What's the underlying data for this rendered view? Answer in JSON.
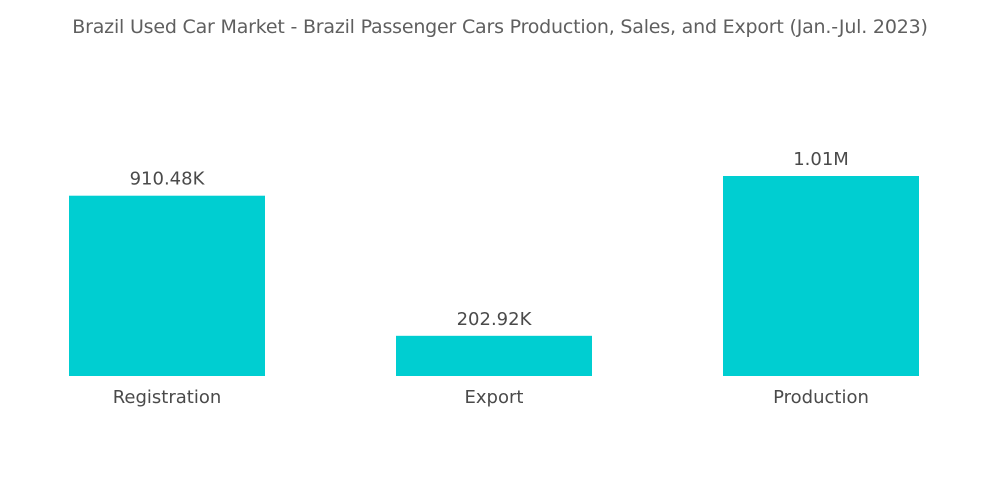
{
  "chart_data": {
    "type": "bar",
    "title": "Brazil Used Car Market - Brazil Passenger Cars Production, Sales, and Export (Jan.-Jul. 2023)",
    "categories": [
      "Registration",
      "Export",
      "Production"
    ],
    "values": [
      910480,
      202920,
      1010000
    ],
    "data_labels": [
      "910.48K",
      "202.92K",
      "1.01M"
    ],
    "xlabel": "",
    "ylabel": "",
    "ylim": [
      0,
      1010000
    ],
    "grid": false,
    "legend": "none",
    "bar_color": "#00ced1"
  }
}
